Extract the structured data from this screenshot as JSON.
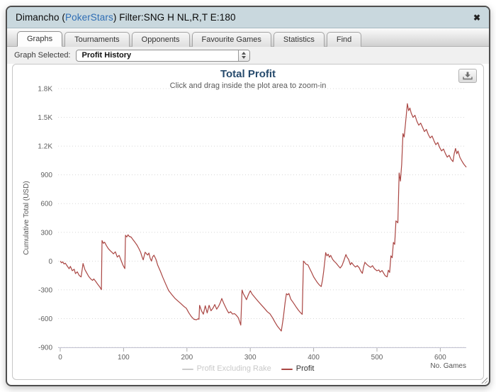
{
  "window": {
    "title_prefix": "Dimancho (",
    "title_brand": "PokerStars",
    "title_suffix": ") Filter:SNG H NL,R,T E:180",
    "brand_color": "#2e6db4",
    "close_glyph": "✖"
  },
  "tabs": [
    {
      "label": "Graphs",
      "active": true
    },
    {
      "label": "Tournaments",
      "active": false
    },
    {
      "label": "Opponents",
      "active": false
    },
    {
      "label": "Favourite Games",
      "active": false
    },
    {
      "label": "Statistics",
      "active": false
    },
    {
      "label": "Find",
      "active": false
    }
  ],
  "toolbar": {
    "label": "Graph Selected:",
    "selected_value": "Profit History"
  },
  "legend": {
    "items": [
      {
        "label": "Profit Excluding Rake",
        "color": "#cccccc",
        "text_color": "#c9c9c9",
        "enabled": false
      },
      {
        "label": "Profit",
        "color": "#aa4643",
        "text_color": "#333333",
        "enabled": true
      }
    ]
  },
  "chart_data": {
    "type": "line",
    "title": "Total Profit",
    "subtitle": "Click and drag inside the plot area to zoom-in",
    "xlabel": "No. Games",
    "ylabel": "Cumulative Total (USD)",
    "xlim": [
      0,
      645
    ],
    "ylim": [
      -900,
      1800
    ],
    "grid": true,
    "legend_position": "bottom",
    "xticks": [
      0,
      100,
      200,
      300,
      400,
      500,
      600
    ],
    "yticks": [
      {
        "v": -900,
        "label": "-900"
      },
      {
        "v": -600,
        "label": "-600"
      },
      {
        "v": -300,
        "label": "-300"
      },
      {
        "v": 0,
        "label": "0"
      },
      {
        "v": 300,
        "label": "300"
      },
      {
        "v": 600,
        "label": "600"
      },
      {
        "v": 900,
        "label": "900"
      },
      {
        "v": 1200,
        "label": "1.2K"
      },
      {
        "v": 1500,
        "label": "1.5K"
      },
      {
        "v": 1800,
        "label": "1.8K"
      }
    ],
    "series": [
      {
        "name": "Profit Excluding Rake",
        "color": "#cccccc",
        "visible": false,
        "points": []
      },
      {
        "name": "Profit",
        "color": "#aa4643",
        "visible": true,
        "points": [
          [
            0,
            0
          ],
          [
            2,
            -18
          ],
          [
            4,
            -8
          ],
          [
            6,
            -30
          ],
          [
            8,
            -22
          ],
          [
            11,
            -50
          ],
          [
            14,
            -80
          ],
          [
            16,
            -55
          ],
          [
            19,
            -100
          ],
          [
            22,
            -85
          ],
          [
            24,
            -130
          ],
          [
            27,
            -112
          ],
          [
            30,
            -150
          ],
          [
            33,
            -165
          ],
          [
            36,
            -25
          ],
          [
            39,
            -90
          ],
          [
            42,
            -125
          ],
          [
            45,
            -160
          ],
          [
            48,
            -185
          ],
          [
            51,
            -202
          ],
          [
            53,
            -186
          ],
          [
            56,
            -212
          ],
          [
            59,
            -240
          ],
          [
            62,
            -265
          ],
          [
            65,
            -298
          ],
          [
            66,
            215
          ],
          [
            68,
            185
          ],
          [
            70,
            198
          ],
          [
            73,
            160
          ],
          [
            76,
            130
          ],
          [
            79,
            108
          ],
          [
            82,
            90
          ],
          [
            84,
            76
          ],
          [
            87,
            97
          ],
          [
            90,
            42
          ],
          [
            93,
            60
          ],
          [
            96,
            10
          ],
          [
            99,
            -42
          ],
          [
            102,
            -78
          ],
          [
            103,
            270
          ],
          [
            105,
            252
          ],
          [
            107,
            275
          ],
          [
            109,
            258
          ],
          [
            112,
            250
          ],
          [
            115,
            222
          ],
          [
            118,
            196
          ],
          [
            121,
            168
          ],
          [
            124,
            132
          ],
          [
            127,
            92
          ],
          [
            129,
            48
          ],
          [
            131,
            13
          ],
          [
            134,
            93
          ],
          [
            136,
            78
          ],
          [
            138,
            63
          ],
          [
            140,
            84
          ],
          [
            142,
            30
          ],
          [
            144,
            0
          ],
          [
            146,
            45
          ],
          [
            148,
            62
          ],
          [
            151,
            20
          ],
          [
            154,
            -45
          ],
          [
            158,
            -105
          ],
          [
            162,
            -170
          ],
          [
            166,
            -232
          ],
          [
            171,
            -307
          ],
          [
            176,
            -348
          ],
          [
            181,
            -388
          ],
          [
            186,
            -418
          ],
          [
            190,
            -441
          ],
          [
            195,
            -472
          ],
          [
            199,
            -492
          ],
          [
            203,
            -540
          ],
          [
            207,
            -580
          ],
          [
            211,
            -607
          ],
          [
            215,
            -612
          ],
          [
            218,
            -601
          ],
          [
            219,
            -608
          ],
          [
            220,
            -461
          ],
          [
            223,
            -520
          ],
          [
            226,
            -554
          ],
          [
            229,
            -466
          ],
          [
            232,
            -541
          ],
          [
            235,
            -461
          ],
          [
            238,
            -518
          ],
          [
            241,
            -492
          ],
          [
            244,
            -453
          ],
          [
            247,
            -502
          ],
          [
            250,
            -472
          ],
          [
            253,
            -428
          ],
          [
            255,
            -390
          ],
          [
            258,
            -440
          ],
          [
            261,
            -480
          ],
          [
            264,
            -520
          ],
          [
            266,
            -541
          ],
          [
            269,
            -528
          ],
          [
            272,
            -553
          ],
          [
            275,
            -548
          ],
          [
            278,
            -565
          ],
          [
            281,
            -590
          ],
          [
            283,
            -628
          ],
          [
            285,
            -668
          ],
          [
            287,
            -302
          ],
          [
            289,
            -340
          ],
          [
            292,
            -375
          ],
          [
            294,
            -403
          ],
          [
            297,
            -352
          ],
          [
            300,
            -310
          ],
          [
            303,
            -345
          ],
          [
            307,
            -378
          ],
          [
            312,
            -416
          ],
          [
            317,
            -454
          ],
          [
            322,
            -491
          ],
          [
            327,
            -529
          ],
          [
            331,
            -549
          ],
          [
            335,
            -590
          ],
          [
            339,
            -638
          ],
          [
            343,
            -680
          ],
          [
            346,
            -705
          ],
          [
            349,
            -730
          ],
          [
            352,
            -600
          ],
          [
            355,
            -430
          ],
          [
            357,
            -340
          ],
          [
            359,
            -352
          ],
          [
            361,
            -338
          ],
          [
            364,
            -398
          ],
          [
            367,
            -425
          ],
          [
            370,
            -455
          ],
          [
            373,
            -485
          ],
          [
            376,
            -512
          ],
          [
            379,
            -535
          ],
          [
            382,
            -556
          ],
          [
            384,
            0
          ],
          [
            386,
            -15
          ],
          [
            388,
            -32
          ],
          [
            391,
            -40
          ],
          [
            394,
            -80
          ],
          [
            397,
            -120
          ],
          [
            400,
            -164
          ],
          [
            403,
            -195
          ],
          [
            406,
            -225
          ],
          [
            409,
            -248
          ],
          [
            412,
            -265
          ],
          [
            414,
            -200
          ],
          [
            416,
            -100
          ],
          [
            418,
            20
          ],
          [
            419,
            88
          ],
          [
            421,
            55
          ],
          [
            423,
            72
          ],
          [
            425,
            40
          ],
          [
            427,
            60
          ],
          [
            430,
            18
          ],
          [
            433,
            -5
          ],
          [
            436,
            -25
          ],
          [
            439,
            -50
          ],
          [
            442,
            -72
          ],
          [
            445,
            -45
          ],
          [
            448,
            10
          ],
          [
            451,
            68
          ],
          [
            453,
            38
          ],
          [
            455,
            20
          ],
          [
            458,
            -38
          ],
          [
            460,
            -15
          ],
          [
            463,
            -42
          ],
          [
            466,
            -62
          ],
          [
            469,
            -48
          ],
          [
            472,
            -70
          ],
          [
            474,
            -100
          ],
          [
            477,
            -128
          ],
          [
            479,
            -60
          ],
          [
            481,
            -12
          ],
          [
            484,
            -35
          ],
          [
            487,
            -52
          ],
          [
            490,
            -65
          ],
          [
            493,
            -48
          ],
          [
            496,
            -80
          ],
          [
            500,
            -101
          ],
          [
            503,
            -92
          ],
          [
            505,
            -115
          ],
          [
            508,
            -98
          ],
          [
            511,
            -130
          ],
          [
            513,
            -152
          ],
          [
            516,
            -165
          ],
          [
            518,
            -95
          ],
          [
            520,
            -118
          ],
          [
            522,
            55
          ],
          [
            524,
            35
          ],
          [
            526,
            195
          ],
          [
            528,
            175
          ],
          [
            530,
            420
          ],
          [
            533,
            400
          ],
          [
            535,
            920
          ],
          [
            537,
            835
          ],
          [
            539,
            1010
          ],
          [
            541,
            1330
          ],
          [
            543,
            1295
          ],
          [
            545,
            1430
          ],
          [
            548,
            1643
          ],
          [
            550,
            1570
          ],
          [
            552,
            1597
          ],
          [
            554,
            1545
          ],
          [
            557,
            1500
          ],
          [
            560,
            1522
          ],
          [
            563,
            1460
          ],
          [
            566,
            1418
          ],
          [
            569,
            1440
          ],
          [
            572,
            1395
          ],
          [
            575,
            1352
          ],
          [
            578,
            1375
          ],
          [
            581,
            1322
          ],
          [
            584,
            1285
          ],
          [
            587,
            1305
          ],
          [
            590,
            1255
          ],
          [
            593,
            1215
          ],
          [
            596,
            1238
          ],
          [
            599,
            1185
          ],
          [
            602,
            1150
          ],
          [
            605,
            1170
          ],
          [
            608,
            1122
          ],
          [
            611,
            1085
          ],
          [
            614,
            1105
          ],
          [
            617,
            1062
          ],
          [
            620,
            1038
          ],
          [
            622,
            1125
          ],
          [
            624,
            1176
          ],
          [
            626,
            1120
          ],
          [
            628,
            1148
          ],
          [
            631,
            1082
          ],
          [
            634,
            1045
          ],
          [
            637,
            1012
          ],
          [
            641,
            980
          ]
        ]
      }
    ]
  }
}
